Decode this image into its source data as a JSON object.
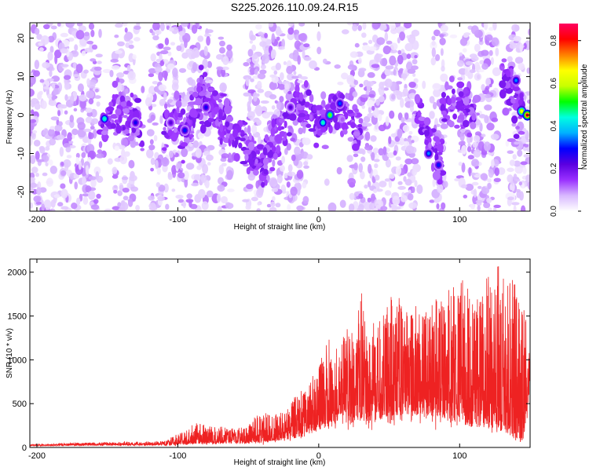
{
  "title": "S225.2026.110.09.24.R15",
  "chart_data": [
    {
      "type": "heatmap",
      "name": "spectrogram",
      "xlabel": "Height of straight line (km)",
      "ylabel": "Frequency (Hz)",
      "xlim": [
        -205,
        150
      ],
      "ylim": [
        -25,
        24
      ],
      "xticks": [
        -200,
        -100,
        0,
        100
      ],
      "yticks": [
        -20,
        -10,
        0,
        10,
        20
      ],
      "colorbar": {
        "label": "Normalized spectral amplitude",
        "range": [
          0.0,
          0.88
        ],
        "ticks": [
          "0.0",
          "0.2",
          "0.4",
          "0.6",
          "0.8"
        ],
        "tick_values": [
          0.0,
          0.2,
          0.4,
          0.6,
          0.8
        ],
        "colors": [
          "#ffffff",
          "#d8b8ff",
          "#9a30ff",
          "#5a00e0",
          "#0000ff",
          "#00b0ff",
          "#00ffe0",
          "#00ff00",
          "#c8ff00",
          "#ffff00",
          "#ff8000",
          "#ff0000",
          "#ff0060"
        ]
      },
      "gaps": [
        [
          -155,
          -145
        ],
        [
          -128,
          -120
        ],
        [
          -77,
          -71
        ],
        [
          -62,
          -52
        ],
        [
          -8,
          22
        ],
        [
          69,
          80
        ],
        [
          90,
          100
        ],
        [
          127,
          135
        ]
      ],
      "streak_segments": [
        {
          "x": [
            -155,
            -145
          ],
          "y": [
            -4,
            2
          ]
        },
        {
          "x": [
            -145,
            -125
          ],
          "y": [
            2,
            -4
          ]
        },
        {
          "x": [
            -110,
            -98
          ],
          "y": [
            -3,
            0
          ]
        },
        {
          "x": [
            -98,
            -85
          ],
          "y": [
            -5,
            1
          ]
        },
        {
          "x": [
            -85,
            -70
          ],
          "y": [
            7,
            0
          ]
        },
        {
          "x": [
            -70,
            -40
          ],
          "y": [
            0,
            -14
          ]
        },
        {
          "x": [
            -40,
            -15
          ],
          "y": [
            -13,
            3
          ]
        },
        {
          "x": [
            -15,
            0
          ],
          "y": [
            3,
            -3
          ]
        },
        {
          "x": [
            0,
            15
          ],
          "y": [
            -2,
            3
          ]
        },
        {
          "x": [
            15,
            30
          ],
          "y": [
            3,
            -5
          ]
        },
        {
          "x": [
            70,
            88
          ],
          "y": [
            2,
            -15
          ]
        },
        {
          "x": [
            88,
            110
          ],
          "y": [
            3,
            1
          ]
        },
        {
          "x": [
            130,
            145
          ],
          "y": [
            10,
            1
          ]
        }
      ],
      "hotspots": [
        {
          "x": -152,
          "y": -1,
          "v": 0.45
        },
        {
          "x": -130,
          "y": -2,
          "v": 0.28
        },
        {
          "x": -105,
          "y": -2,
          "v": 0.22
        },
        {
          "x": -95,
          "y": -4,
          "v": 0.3
        },
        {
          "x": -80,
          "y": 2,
          "v": 0.28
        },
        {
          "x": -20,
          "y": 2,
          "v": 0.22
        },
        {
          "x": 3,
          "y": -2,
          "v": 0.45
        },
        {
          "x": 8,
          "y": 0,
          "v": 0.55
        },
        {
          "x": 15,
          "y": 3,
          "v": 0.32
        },
        {
          "x": 78,
          "y": -10,
          "v": 0.35
        },
        {
          "x": 85,
          "y": -13,
          "v": 0.3
        },
        {
          "x": 140,
          "y": 9,
          "v": 0.35
        },
        {
          "x": 144,
          "y": 1,
          "v": 0.65
        },
        {
          "x": 148,
          "y": 0,
          "v": 0.85
        }
      ]
    },
    {
      "type": "line",
      "name": "snr",
      "xlabel": "Height of straight line (km)",
      "ylabel": "SNR (10 * v/v)",
      "xlim": [
        -205,
        150
      ],
      "ylim": [
        0,
        2150
      ],
      "xticks": [
        -200,
        -100,
        0,
        100
      ],
      "yticks": [
        0,
        500,
        1000,
        1500,
        2000
      ],
      "color": "#ee2222",
      "envelope": {
        "x": [
          -205,
          -150,
          -110,
          -95,
          -85,
          -75,
          -55,
          -40,
          -25,
          -15,
          -5,
          0,
          5,
          10,
          20,
          25,
          30,
          35,
          45,
          60,
          70,
          80,
          90,
          100,
          110,
          120,
          125,
          130,
          135,
          140,
          145,
          150
        ],
        "peak": [
          35,
          60,
          70,
          190,
          300,
          230,
          230,
          400,
          380,
          600,
          780,
          920,
          1350,
          1000,
          1570,
          1200,
          1800,
          1300,
          1600,
          1750,
          1500,
          1650,
          1750,
          1950,
          1750,
          1950,
          2150,
          2000,
          1900,
          1950,
          1700,
          1000
        ],
        "base": [
          20,
          25,
          25,
          35,
          40,
          45,
          50,
          60,
          90,
          120,
          180,
          220,
          260,
          300,
          320,
          300,
          330,
          340,
          350,
          380,
          380,
          380,
          350,
          300,
          280,
          250,
          230,
          200,
          150,
          100,
          80,
          800
        ]
      }
    }
  ]
}
